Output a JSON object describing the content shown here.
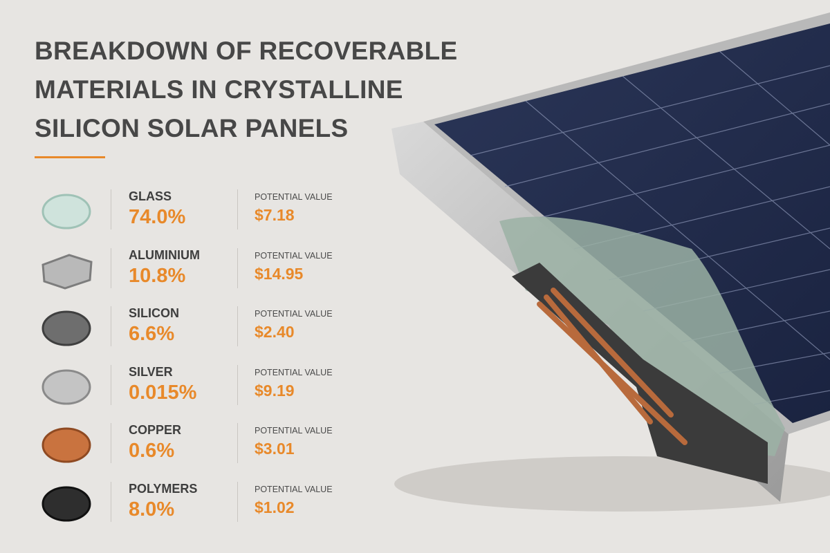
{
  "title": "BREAKDOWN OF RECOVERABLE MATERIALS IN CRYSTALLINE SILICON SOLAR PANELS",
  "value_label": "POTENTIAL VALUE",
  "materials": [
    {
      "name": "GLASS",
      "share": "74.0%",
      "value": "$7.18"
    },
    {
      "name": "ALUMINIUM",
      "share": "10.8%",
      "value": "$14.95"
    },
    {
      "name": "SILICON",
      "share": "6.6%",
      "value": "$2.40"
    },
    {
      "name": "SILVER",
      "share": "0.015%",
      "value": "$9.19"
    },
    {
      "name": "COPPER",
      "share": "0.6%",
      "value": "$3.01"
    },
    {
      "name": "POLYMERS",
      "share": "8.0%",
      "value": "$1.02"
    }
  ]
}
